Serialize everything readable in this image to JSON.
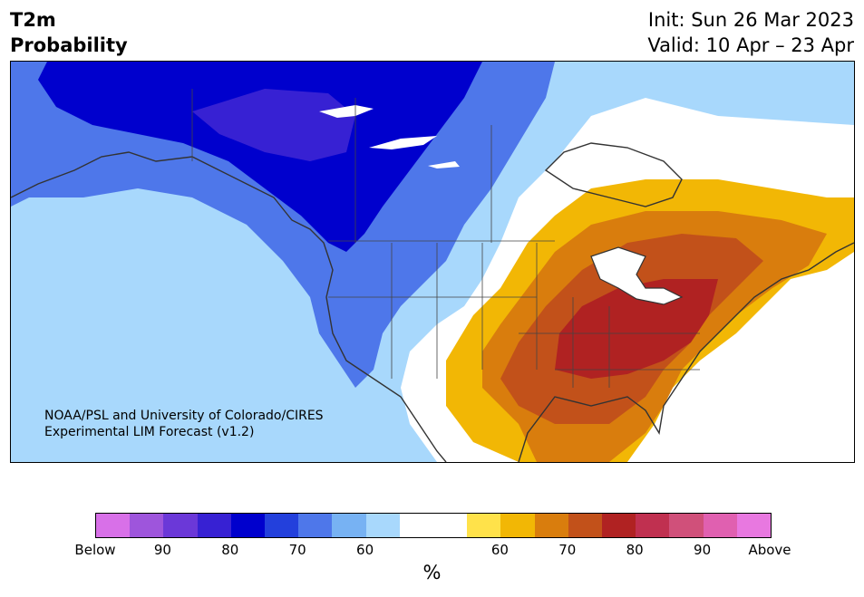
{
  "header": {
    "variable": "T2m",
    "product": "Probability",
    "init": "Init: Sun 26 Mar 2023",
    "valid": "Valid: 10 Apr – 23 Apr"
  },
  "map": {
    "credit_line1": "NOAA/PSL and University of Colorado/CIRES",
    "credit_line2": "Experimental LIM Forecast (v1.2)",
    "colors": {
      "below_60": "#a8d8fc",
      "below_70": "#4e77ea",
      "below_80": "#0000cd",
      "below_85": "#3721d3",
      "neutral": "#ffffff",
      "above_60": "#f2b705",
      "above_70": "#d97d0d",
      "above_75": "#c2511a",
      "above_80": "#b02222"
    }
  },
  "colorbar": {
    "colors": [
      "#d870e8",
      "#9e55dc",
      "#6b38d8",
      "#3721d3",
      "#0000cd",
      "#2340dc",
      "#4e77ea",
      "#77b2f3",
      "#a8d8fc",
      "#ffffff",
      "#ffffff",
      "#ffe24a",
      "#f2b705",
      "#d97d0d",
      "#c2511a",
      "#b02222",
      "#c03050",
      "#d0507a",
      "#e060b0",
      "#e878e0"
    ],
    "tick_labels": [
      "Below",
      "90",
      "80",
      "70",
      "60",
      "60",
      "70",
      "80",
      "90",
      "Above"
    ],
    "units": "%"
  }
}
